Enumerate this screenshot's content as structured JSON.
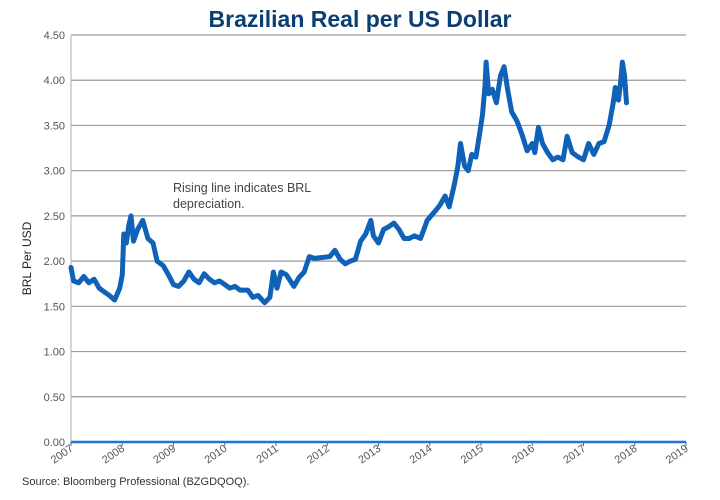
{
  "chart_data": {
    "type": "line",
    "title": "Brazilian Real per US Dollar",
    "ylabel": "BRL Per USD",
    "xlabel": "",
    "ylim": [
      0,
      4.5
    ],
    "xlim": [
      2007,
      2019
    ],
    "yticks": [
      "0.00",
      "0.50",
      "1.00",
      "1.50",
      "2.00",
      "2.50",
      "3.00",
      "3.50",
      "4.00",
      "4.50"
    ],
    "xticks": [
      "2007",
      "2008",
      "2009",
      "2010",
      "2011",
      "2012",
      "2013",
      "2014",
      "2015",
      "2016",
      "2017",
      "2018",
      "2019"
    ],
    "grid": "horizontal",
    "line_color": "#0f62b7",
    "annotation": [
      "Rising line indicates BRL",
      "depreciation."
    ],
    "source": "Source:  Bloomberg Professional (BZGDQOQ).",
    "points": [
      [
        2007.0,
        1.93
      ],
      [
        2007.05,
        1.78
      ],
      [
        2007.15,
        1.76
      ],
      [
        2007.25,
        1.83
      ],
      [
        2007.35,
        1.76
      ],
      [
        2007.45,
        1.8
      ],
      [
        2007.55,
        1.7
      ],
      [
        2007.65,
        1.66
      ],
      [
        2007.75,
        1.62
      ],
      [
        2007.85,
        1.57
      ],
      [
        2007.95,
        1.7
      ],
      [
        2008.0,
        1.85
      ],
      [
        2008.03,
        2.3
      ],
      [
        2008.08,
        2.2
      ],
      [
        2008.13,
        2.4
      ],
      [
        2008.17,
        2.5
      ],
      [
        2008.22,
        2.22
      ],
      [
        2008.3,
        2.35
      ],
      [
        2008.4,
        2.45
      ],
      [
        2008.5,
        2.25
      ],
      [
        2008.6,
        2.2
      ],
      [
        2008.68,
        2.0
      ],
      [
        2008.8,
        1.95
      ],
      [
        2008.9,
        1.85
      ],
      [
        2009.0,
        1.74
      ],
      [
        2009.1,
        1.72
      ],
      [
        2009.2,
        1.78
      ],
      [
        2009.3,
        1.88
      ],
      [
        2009.4,
        1.8
      ],
      [
        2009.5,
        1.76
      ],
      [
        2009.6,
        1.86
      ],
      [
        2009.7,
        1.8
      ],
      [
        2009.8,
        1.76
      ],
      [
        2009.9,
        1.78
      ],
      [
        2010.0,
        1.74
      ],
      [
        2010.1,
        1.7
      ],
      [
        2010.2,
        1.72
      ],
      [
        2010.3,
        1.68
      ],
      [
        2010.45,
        1.68
      ],
      [
        2010.55,
        1.6
      ],
      [
        2010.65,
        1.62
      ],
      [
        2010.78,
        1.54
      ],
      [
        2010.88,
        1.6
      ],
      [
        2010.95,
        1.88
      ],
      [
        2011.02,
        1.7
      ],
      [
        2011.1,
        1.88
      ],
      [
        2011.2,
        1.85
      ],
      [
        2011.35,
        1.72
      ],
      [
        2011.45,
        1.82
      ],
      [
        2011.55,
        1.88
      ],
      [
        2011.65,
        2.05
      ],
      [
        2011.75,
        2.03
      ],
      [
        2011.9,
        2.04
      ],
      [
        2012.05,
        2.05
      ],
      [
        2012.15,
        2.12
      ],
      [
        2012.25,
        2.02
      ],
      [
        2012.35,
        1.97
      ],
      [
        2012.45,
        2.0
      ],
      [
        2012.55,
        2.02
      ],
      [
        2012.65,
        2.22
      ],
      [
        2012.75,
        2.3
      ],
      [
        2012.85,
        2.45
      ],
      [
        2012.9,
        2.28
      ],
      [
        2013.0,
        2.2
      ],
      [
        2013.1,
        2.35
      ],
      [
        2013.2,
        2.38
      ],
      [
        2013.3,
        2.42
      ],
      [
        2013.4,
        2.35
      ],
      [
        2013.5,
        2.25
      ],
      [
        2013.6,
        2.25
      ],
      [
        2013.7,
        2.28
      ],
      [
        2013.82,
        2.25
      ],
      [
        2013.95,
        2.45
      ],
      [
        2014.1,
        2.55
      ],
      [
        2014.2,
        2.62
      ],
      [
        2014.3,
        2.72
      ],
      [
        2014.38,
        2.6
      ],
      [
        2014.48,
        2.85
      ],
      [
        2014.55,
        3.05
      ],
      [
        2014.6,
        3.3
      ],
      [
        2014.68,
        3.05
      ],
      [
        2014.75,
        3.0
      ],
      [
        2014.82,
        3.18
      ],
      [
        2014.9,
        3.15
      ],
      [
        2014.97,
        3.4
      ],
      [
        2015.03,
        3.62
      ],
      [
        2015.08,
        3.95
      ],
      [
        2015.1,
        4.2
      ],
      [
        2015.15,
        3.85
      ],
      [
        2015.22,
        3.9
      ],
      [
        2015.3,
        3.75
      ],
      [
        2015.38,
        4.05
      ],
      [
        2015.45,
        4.15
      ],
      [
        2015.52,
        3.9
      ],
      [
        2015.6,
        3.65
      ],
      [
        2015.7,
        3.55
      ],
      [
        2015.8,
        3.4
      ],
      [
        2015.9,
        3.22
      ],
      [
        2016.0,
        3.3
      ],
      [
        2016.05,
        3.2
      ],
      [
        2016.12,
        3.48
      ],
      [
        2016.2,
        3.3
      ],
      [
        2016.3,
        3.2
      ],
      [
        2016.4,
        3.12
      ],
      [
        2016.5,
        3.15
      ],
      [
        2016.6,
        3.12
      ],
      [
        2016.68,
        3.38
      ],
      [
        2016.78,
        3.2
      ],
      [
        2016.9,
        3.15
      ],
      [
        2017.0,
        3.12
      ],
      [
        2017.1,
        3.3
      ],
      [
        2017.2,
        3.18
      ],
      [
        2017.3,
        3.3
      ],
      [
        2017.4,
        3.32
      ],
      [
        2017.5,
        3.5
      ],
      [
        2017.58,
        3.75
      ],
      [
        2017.62,
        3.92
      ],
      [
        2017.68,
        3.78
      ],
      [
        2017.72,
        3.95
      ],
      [
        2017.76,
        4.2
      ],
      [
        2017.8,
        4.05
      ],
      [
        2017.84,
        3.75
      ]
    ]
  }
}
